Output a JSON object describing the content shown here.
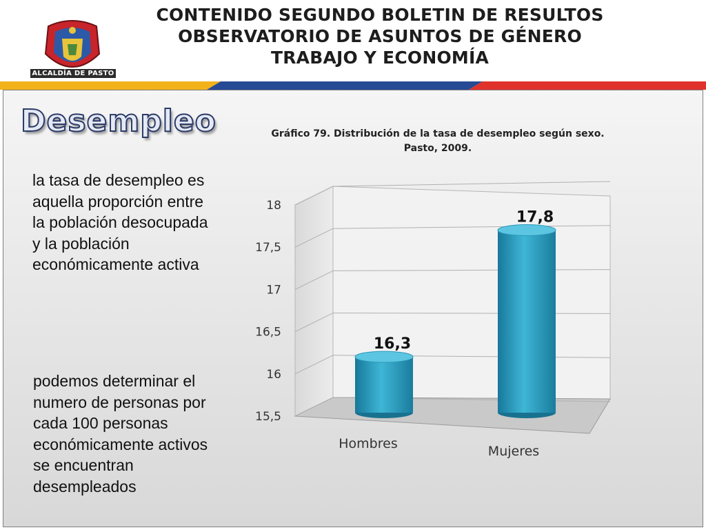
{
  "header": {
    "logo_caption": "ALCALDÍA DE PASTO",
    "title_lines": [
      "CONTENIDO SEGUNDO BOLETIN DE RESULTOS",
      "OBSERVATORIO DE ASUNTOS DE GÉNERO",
      "TRABAJO Y ECONOMÍA"
    ]
  },
  "section_title": "Desempleo",
  "paragraphs": [
    "la tasa de desempleo es  aquella proporción entre la población desocupada y la población económicamente activa",
    "podemos determinar el numero de personas por cada 100 personas económicamente activos se encuentran desempleados"
  ],
  "colors": {
    "bar": "#2fa2c2",
    "stripe": [
      "#f2b21a",
      "#274a95",
      "#e0322b"
    ],
    "title_fill": "#e4e9f5",
    "title_stroke": "#2b3a67"
  },
  "chart_data": {
    "type": "bar",
    "style": "3d-cylinder",
    "title_lines": [
      "Gráfico 79. Distribución de la tasa de desempleo según sexo.",
      "Pasto, 2009."
    ],
    "categories": [
      "Hombres",
      "Mujeres"
    ],
    "values": [
      16.3,
      17.8
    ],
    "value_labels": [
      "16,3",
      "17,8"
    ],
    "yticks": [
      "15,5",
      "16",
      "16,5",
      "17",
      "17,5",
      "18"
    ],
    "ylim": [
      15.5,
      18
    ],
    "grid": true,
    "legend": "none"
  }
}
